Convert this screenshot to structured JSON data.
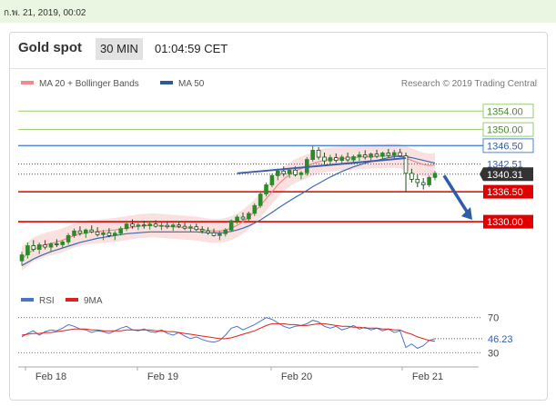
{
  "header": {
    "date": "ก.พ. 21, 2019, 00:02"
  },
  "widget": {
    "instrument": "Gold spot",
    "timeframe": "30 MIN",
    "time": "01:04:59 CET"
  },
  "legend": {
    "items": [
      {
        "label": "MA 20 + Bollinger Bands",
        "color": "#f28a8a"
      },
      {
        "label": "MA 50",
        "color": "#2e5a9c"
      }
    ],
    "credit": "Research © 2019 Trading Central"
  },
  "rsi_legend": {
    "items": [
      {
        "label": "RSI",
        "color": "#4a74c4"
      },
      {
        "label": "9MA",
        "color": "#e02020"
      }
    ]
  },
  "colors": {
    "green": "#9acd6a",
    "blue": "#4f86d6",
    "red": "#e00000",
    "candle": "#2b8a2b",
    "dark": "#333333"
  },
  "chart_data": {
    "type": "candlestick",
    "x_ticks": [
      "Feb 18",
      "Feb 19",
      "Feb 20",
      "Feb 21"
    ],
    "ylim": [
      1318,
      1358
    ],
    "levels": [
      {
        "label": "1354.00",
        "value": 1354.0,
        "color": "#9acd6a",
        "kind": "resistance"
      },
      {
        "label": "1350.00",
        "value": 1350.0,
        "color": "#9acd6a",
        "kind": "resistance"
      },
      {
        "label": "1346.50",
        "value": 1346.5,
        "color": "#4f86d6",
        "kind": "pivot"
      },
      {
        "label": "1342.51",
        "value": 1342.51,
        "color": "#666666",
        "kind": "indicator"
      },
      {
        "label": "1340.31",
        "value": 1340.31,
        "color": "#333333",
        "kind": "last"
      },
      {
        "label": "1336.50",
        "value": 1336.5,
        "color": "#e00000",
        "kind": "support"
      },
      {
        "label": "1330.00",
        "value": 1330.0,
        "color": "#e00000",
        "kind": "support"
      }
    ],
    "candles": [
      {
        "o": 1321.5,
        "h": 1323.5,
        "l": 1320.5,
        "c": 1322.8
      },
      {
        "o": 1322.8,
        "h": 1325.5,
        "l": 1322.0,
        "c": 1324.8
      },
      {
        "o": 1324.8,
        "h": 1326.0,
        "l": 1323.5,
        "c": 1324.0
      },
      {
        "o": 1324.0,
        "h": 1325.5,
        "l": 1323.0,
        "c": 1325.0
      },
      {
        "o": 1325.0,
        "h": 1326.0,
        "l": 1324.0,
        "c": 1324.5
      },
      {
        "o": 1324.5,
        "h": 1325.5,
        "l": 1323.5,
        "c": 1325.2
      },
      {
        "o": 1325.2,
        "h": 1326.2,
        "l": 1324.5,
        "c": 1325.0
      },
      {
        "o": 1325.0,
        "h": 1326.0,
        "l": 1324.2,
        "c": 1325.6
      },
      {
        "o": 1325.6,
        "h": 1327.5,
        "l": 1325.0,
        "c": 1327.0
      },
      {
        "o": 1327.0,
        "h": 1328.5,
        "l": 1326.5,
        "c": 1328.0
      },
      {
        "o": 1328.0,
        "h": 1329.0,
        "l": 1327.0,
        "c": 1327.5
      },
      {
        "o": 1327.5,
        "h": 1328.5,
        "l": 1326.5,
        "c": 1328.2
      },
      {
        "o": 1328.2,
        "h": 1329.2,
        "l": 1327.5,
        "c": 1327.8
      },
      {
        "o": 1327.8,
        "h": 1328.8,
        "l": 1326.8,
        "c": 1327.2
      },
      {
        "o": 1327.2,
        "h": 1328.2,
        "l": 1326.0,
        "c": 1327.6
      },
      {
        "o": 1327.6,
        "h": 1328.6,
        "l": 1326.6,
        "c": 1327.0
      },
      {
        "o": 1327.0,
        "h": 1328.0,
        "l": 1326.0,
        "c": 1327.5
      },
      {
        "o": 1327.5,
        "h": 1329.0,
        "l": 1327.0,
        "c": 1328.5
      },
      {
        "o": 1328.5,
        "h": 1330.0,
        "l": 1328.0,
        "c": 1329.5
      },
      {
        "o": 1329.5,
        "h": 1330.5,
        "l": 1328.5,
        "c": 1329.0
      },
      {
        "o": 1329.0,
        "h": 1330.0,
        "l": 1328.2,
        "c": 1329.3
      },
      {
        "o": 1329.3,
        "h": 1330.2,
        "l": 1328.5,
        "c": 1329.1
      },
      {
        "o": 1329.1,
        "h": 1330.0,
        "l": 1328.3,
        "c": 1329.5
      },
      {
        "o": 1329.5,
        "h": 1330.3,
        "l": 1328.7,
        "c": 1329.0
      },
      {
        "o": 1329.0,
        "h": 1329.8,
        "l": 1328.2,
        "c": 1329.2
      },
      {
        "o": 1329.2,
        "h": 1330.0,
        "l": 1328.5,
        "c": 1328.9
      },
      {
        "o": 1328.9,
        "h": 1329.7,
        "l": 1328.0,
        "c": 1329.3
      },
      {
        "o": 1329.3,
        "h": 1330.0,
        "l": 1328.6,
        "c": 1329.0
      },
      {
        "o": 1329.0,
        "h": 1329.8,
        "l": 1328.2,
        "c": 1328.6
      },
      {
        "o": 1328.6,
        "h": 1329.4,
        "l": 1327.8,
        "c": 1328.9
      },
      {
        "o": 1328.9,
        "h": 1329.6,
        "l": 1328.0,
        "c": 1328.3
      },
      {
        "o": 1328.3,
        "h": 1329.0,
        "l": 1327.5,
        "c": 1328.0
      },
      {
        "o": 1328.0,
        "h": 1328.8,
        "l": 1327.2,
        "c": 1327.6
      },
      {
        "o": 1327.6,
        "h": 1328.5,
        "l": 1326.8,
        "c": 1327.0
      },
      {
        "o": 1327.0,
        "h": 1328.0,
        "l": 1326.0,
        "c": 1327.4
      },
      {
        "o": 1327.4,
        "h": 1328.6,
        "l": 1326.8,
        "c": 1328.2
      },
      {
        "o": 1328.2,
        "h": 1330.5,
        "l": 1327.8,
        "c": 1330.2
      },
      {
        "o": 1330.2,
        "h": 1331.5,
        "l": 1329.5,
        "c": 1331.0
      },
      {
        "o": 1331.0,
        "h": 1332.0,
        "l": 1330.2,
        "c": 1330.6
      },
      {
        "o": 1330.6,
        "h": 1332.2,
        "l": 1330.0,
        "c": 1331.8
      },
      {
        "o": 1331.8,
        "h": 1334.0,
        "l": 1331.2,
        "c": 1333.5
      },
      {
        "o": 1333.5,
        "h": 1336.5,
        "l": 1333.0,
        "c": 1336.0
      },
      {
        "o": 1336.0,
        "h": 1338.5,
        "l": 1335.5,
        "c": 1338.0
      },
      {
        "o": 1338.0,
        "h": 1340.5,
        "l": 1337.5,
        "c": 1340.0
      },
      {
        "o": 1340.0,
        "h": 1341.5,
        "l": 1339.0,
        "c": 1341.0
      },
      {
        "o": 1341.0,
        "h": 1342.0,
        "l": 1339.8,
        "c": 1340.4
      },
      {
        "o": 1340.4,
        "h": 1341.5,
        "l": 1339.5,
        "c": 1341.2
      },
      {
        "o": 1341.2,
        "h": 1342.0,
        "l": 1339.8,
        "c": 1340.2
      },
      {
        "o": 1340.2,
        "h": 1341.0,
        "l": 1339.2,
        "c": 1340.6
      },
      {
        "o": 1340.6,
        "h": 1344.0,
        "l": 1340.0,
        "c": 1343.5
      },
      {
        "o": 1343.5,
        "h": 1346.5,
        "l": 1343.0,
        "c": 1345.5
      },
      {
        "o": 1345.5,
        "h": 1346.2,
        "l": 1343.5,
        "c": 1344.0
      },
      {
        "o": 1344.0,
        "h": 1345.0,
        "l": 1342.5,
        "c": 1343.2
      },
      {
        "o": 1343.2,
        "h": 1344.5,
        "l": 1342.2,
        "c": 1343.9
      },
      {
        "o": 1343.9,
        "h": 1344.8,
        "l": 1342.8,
        "c": 1343.3
      },
      {
        "o": 1343.3,
        "h": 1344.5,
        "l": 1342.5,
        "c": 1344.0
      },
      {
        "o": 1344.0,
        "h": 1345.0,
        "l": 1343.0,
        "c": 1343.4
      },
      {
        "o": 1343.4,
        "h": 1344.5,
        "l": 1342.6,
        "c": 1344.1
      },
      {
        "o": 1344.1,
        "h": 1345.2,
        "l": 1343.2,
        "c": 1344.5
      },
      {
        "o": 1344.5,
        "h": 1345.5,
        "l": 1343.5,
        "c": 1344.0
      },
      {
        "o": 1344.0,
        "h": 1345.0,
        "l": 1343.2,
        "c": 1344.7
      },
      {
        "o": 1344.7,
        "h": 1345.6,
        "l": 1343.8,
        "c": 1344.2
      },
      {
        "o": 1344.2,
        "h": 1345.2,
        "l": 1343.4,
        "c": 1344.9
      },
      {
        "o": 1344.9,
        "h": 1345.8,
        "l": 1344.0,
        "c": 1344.4
      },
      {
        "o": 1344.4,
        "h": 1345.6,
        "l": 1343.6,
        "c": 1345.0
      },
      {
        "o": 1345.0,
        "h": 1345.8,
        "l": 1344.0,
        "c": 1344.3
      },
      {
        "o": 1344.3,
        "h": 1345.0,
        "l": 1336.5,
        "c": 1340.5
      },
      {
        "o": 1340.5,
        "h": 1341.5,
        "l": 1338.5,
        "c": 1339.2
      },
      {
        "o": 1339.2,
        "h": 1340.2,
        "l": 1337.5,
        "c": 1338.5
      },
      {
        "o": 1338.5,
        "h": 1339.5,
        "l": 1337.0,
        "c": 1338.0
      },
      {
        "o": 1338.0,
        "h": 1340.0,
        "l": 1337.5,
        "c": 1339.6
      },
      {
        "o": 1339.6,
        "h": 1341.0,
        "l": 1339.0,
        "c": 1340.5
      }
    ],
    "ma20": [
      1322,
      1323,
      1324,
      1324.5,
      1325,
      1325.3,
      1325.6,
      1326,
      1326.5,
      1327,
      1327.3,
      1327.6,
      1327.8,
      1327.9,
      1328,
      1328.1,
      1328.2,
      1328.4,
      1328.6,
      1328.8,
      1329,
      1329.1,
      1329.2,
      1329.2,
      1329.1,
      1329,
      1328.9,
      1328.8,
      1328.7,
      1328.6,
      1328.5,
      1328.3,
      1328.1,
      1328,
      1328,
      1328.2,
      1328.6,
      1329.2,
      1330,
      1331,
      1332.2,
      1333.5,
      1335,
      1336.5,
      1338,
      1339.2,
      1340.2,
      1341,
      1341.5,
      1342,
      1342.6,
      1343,
      1343.3,
      1343.5,
      1343.6,
      1343.7,
      1343.8,
      1343.9,
      1344,
      1344.1,
      1344.1,
      1344.2,
      1344.2,
      1344.3,
      1344.3,
      1344.2,
      1343.8,
      1343.3,
      1342.8,
      1342.4,
      1342.2,
      1342.3
    ],
    "ma50": [
      1320.5,
      1321.2,
      1321.9,
      1322.5,
      1323,
      1323.5,
      1323.9,
      1324.3,
      1324.7,
      1325.1,
      1325.5,
      1325.8,
      1326.1,
      1326.4,
      1326.6,
      1326.8,
      1327,
      1327.2,
      1327.4,
      1327.5,
      1327.6,
      1327.7,
      1327.8,
      1327.8,
      1327.8,
      1327.8,
      1327.8,
      1327.8,
      1327.8,
      1327.8,
      1327.8,
      1327.7,
      1327.6,
      1327.6,
      1327.6,
      1327.7,
      1327.9,
      1328.2,
      1328.6,
      1329.1,
      1329.7,
      1330.4,
      1331.2,
      1332,
      1332.9,
      1333.7,
      1334.5,
      1335.3,
      1336,
      1336.8,
      1337.6,
      1338.3,
      1339,
      1339.7,
      1340.3,
      1340.9,
      1341.4,
      1341.9,
      1342.3,
      1342.7,
      1343,
      1343.3,
      1343.6,
      1343.9,
      1344.1,
      1344.2,
      1344.1,
      1343.9,
      1343.6,
      1343.3,
      1343,
      1342.7
    ],
    "rsi": {
      "ylim": [
        20,
        80
      ],
      "levels": [
        70,
        30
      ],
      "last_label": "46.23",
      "rsi": [
        48,
        52,
        55,
        50,
        54,
        56,
        55,
        58,
        62,
        60,
        57,
        56,
        53,
        55,
        54,
        52,
        55,
        58,
        60,
        56,
        55,
        57,
        54,
        53,
        56,
        52,
        50,
        53,
        49,
        46,
        48,
        45,
        43,
        42,
        44,
        50,
        58,
        60,
        56,
        59,
        62,
        66,
        70,
        68,
        64,
        60,
        58,
        60,
        61,
        63,
        67,
        65,
        60,
        58,
        60,
        56,
        58,
        61,
        57,
        59,
        56,
        58,
        55,
        57,
        53,
        55,
        36,
        40,
        35,
        38,
        44,
        46
      ],
      "ma9": [
        50,
        51,
        52,
        52,
        53,
        53,
        54,
        55,
        56,
        57,
        57,
        57,
        56,
        56,
        55,
        55,
        55,
        55,
        56,
        56,
        56,
        56,
        56,
        55,
        55,
        54,
        54,
        53,
        52,
        51,
        50,
        49,
        48,
        47,
        46,
        46,
        47,
        49,
        51,
        53,
        55,
        58,
        61,
        63,
        63,
        63,
        62,
        62,
        61,
        61,
        62,
        63,
        63,
        62,
        61,
        60,
        60,
        59,
        59,
        58,
        58,
        58,
        57,
        57,
        56,
        56,
        53,
        51,
        48,
        46,
        44,
        43
      ]
    }
  }
}
